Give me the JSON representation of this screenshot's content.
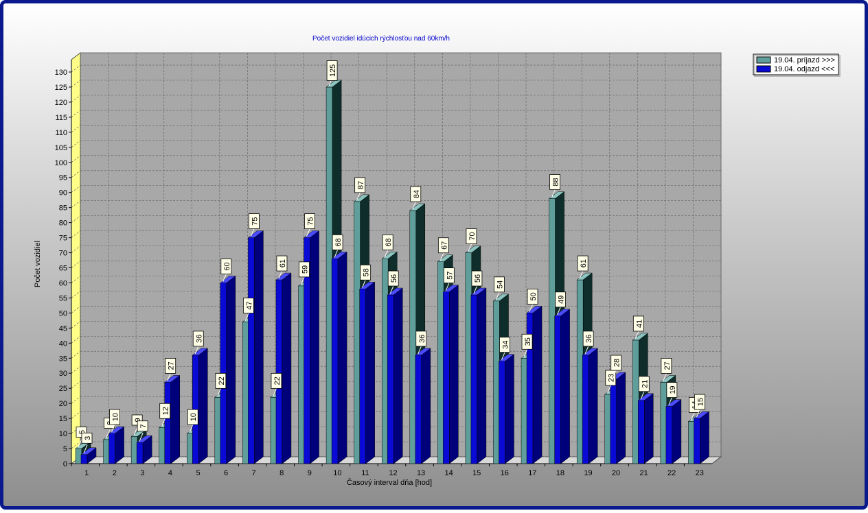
{
  "chart_data": {
    "type": "bar",
    "title": "Počet vozidiel idúcich rýchlosťou nad 60km/h",
    "xlabel": "Časový interval dňa [hod]",
    "ylabel": "Počet vozidiel",
    "ylim": [
      0,
      130
    ],
    "yticks": [
      "0",
      "5",
      "10",
      "15",
      "20",
      "25",
      "30",
      "35",
      "40",
      "45",
      "50",
      "55",
      "60",
      "65",
      "70",
      "75",
      "80",
      "85",
      "90",
      "95",
      "100",
      "105",
      "110",
      "115",
      "120",
      "125",
      "130"
    ],
    "categories": [
      "1",
      "2",
      "3",
      "4",
      "5",
      "6",
      "7",
      "8",
      "9",
      "10",
      "11",
      "12",
      "13",
      "14",
      "15",
      "16",
      "17",
      "18",
      "19",
      "20",
      "21",
      "22",
      "23"
    ],
    "grid": true,
    "legend_position": "top-right",
    "series": [
      {
        "name": "19.04. príjazd >>>",
        "color": "#5f9e9a",
        "values": [
          5,
          8,
          9,
          12,
          10,
          22,
          47,
          22,
          59,
          125,
          87,
          68,
          84,
          67,
          70,
          54,
          35,
          88,
          61,
          23,
          41,
          27,
          14
        ]
      },
      {
        "name": "19.04. odjazd <<<",
        "color": "#0a0ad6",
        "values": [
          3,
          10,
          7,
          27,
          36,
          60,
          75,
          61,
          75,
          68,
          58,
          56,
          36,
          57,
          56,
          34,
          50,
          49,
          36,
          28,
          21,
          19,
          15
        ]
      }
    ]
  }
}
